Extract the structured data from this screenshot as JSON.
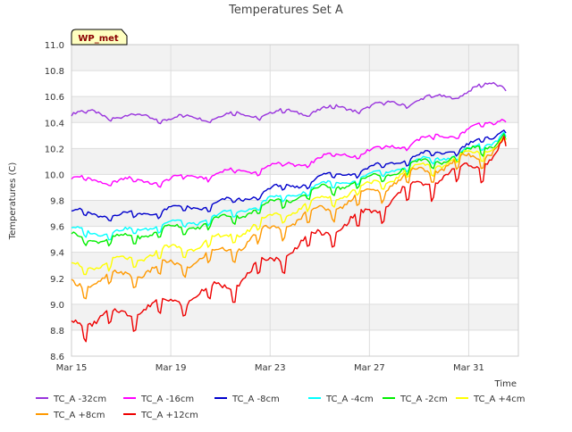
{
  "chart_data": {
    "type": "line",
    "title": "Temperatures Set A",
    "xlabel": "Time",
    "ylabel": "Temperatures (C)",
    "badge": "WP_met",
    "xlim": [
      "2024-03-15",
      "2024-04-02"
    ],
    "ylim": [
      8.6,
      11.0
    ],
    "yticks": [
      8.6,
      8.8,
      9.0,
      9.2,
      9.4,
      9.6,
      9.8,
      10.0,
      10.2,
      10.4,
      10.6,
      10.8,
      11.0
    ],
    "xticks": [
      {
        "date": "2024-03-15",
        "label": "Mar 15"
      },
      {
        "date": "2024-03-19",
        "label": "Mar 19"
      },
      {
        "date": "2024-03-23",
        "label": "Mar 23"
      },
      {
        "date": "2024-03-27",
        "label": "Mar 27"
      },
      {
        "date": "2024-03-31",
        "label": "Mar 31"
      }
    ],
    "grid": true,
    "legend_position": "bottom",
    "series": [
      {
        "name": "TC_A -32cm",
        "color": "#9933dd",
        "x": [
          "2024-03-15",
          "2024-03-16",
          "2024-03-17",
          "2024-03-18",
          "2024-03-19",
          "2024-03-20",
          "2024-03-21",
          "2024-03-22",
          "2024-03-23",
          "2024-03-24",
          "2024-03-25",
          "2024-03-26",
          "2024-03-27",
          "2024-03-28",
          "2024-03-29",
          "2024-03-30",
          "2024-03-31",
          "2024-04-01",
          "2024-04-01T12"
        ],
        "values": [
          10.46,
          10.48,
          10.44,
          10.45,
          10.43,
          10.44,
          10.45,
          10.46,
          10.47,
          10.48,
          10.5,
          10.51,
          10.52,
          10.55,
          10.57,
          10.6,
          10.64,
          10.7,
          10.69
        ]
      },
      {
        "name": "TC_A -16cm",
        "color": "#ff00ff",
        "x": [
          "2024-03-15",
          "2024-03-16",
          "2024-03-17",
          "2024-03-18",
          "2024-03-19",
          "2024-03-20",
          "2024-03-21",
          "2024-03-22",
          "2024-03-23",
          "2024-03-24",
          "2024-03-25",
          "2024-03-26",
          "2024-03-27",
          "2024-03-28",
          "2024-03-29",
          "2024-03-30",
          "2024-03-31",
          "2024-04-01",
          "2024-04-01T12"
        ],
        "values": [
          9.96,
          9.96,
          9.95,
          9.95,
          9.96,
          9.99,
          10.01,
          10.03,
          10.06,
          10.08,
          10.12,
          10.16,
          10.18,
          10.22,
          10.26,
          10.3,
          10.34,
          10.4,
          10.46
        ]
      },
      {
        "name": "TC_A -8cm",
        "color": "#0000cc",
        "x": [
          "2024-03-15",
          "2024-03-16",
          "2024-03-17",
          "2024-03-18",
          "2024-03-19",
          "2024-03-20",
          "2024-03-21",
          "2024-03-22",
          "2024-03-23",
          "2024-03-24",
          "2024-03-25",
          "2024-03-26",
          "2024-03-27",
          "2024-03-28",
          "2024-03-29",
          "2024-03-30",
          "2024-03-31",
          "2024-04-01",
          "2024-04-01T12"
        ],
        "values": [
          9.71,
          9.7,
          9.68,
          9.71,
          9.73,
          9.75,
          9.78,
          9.82,
          9.88,
          9.92,
          9.97,
          10.02,
          10.04,
          10.1,
          10.14,
          10.18,
          10.22,
          10.3,
          10.38
        ]
      },
      {
        "name": "TC_A -4cm",
        "color": "#00ffff",
        "x": [
          "2024-03-15",
          "2024-03-16",
          "2024-03-17",
          "2024-03-18",
          "2024-03-19",
          "2024-03-20",
          "2024-03-21",
          "2024-03-22",
          "2024-03-23",
          "2024-03-24",
          "2024-03-25",
          "2024-03-26",
          "2024-03-27",
          "2024-03-28",
          "2024-03-29",
          "2024-03-30",
          "2024-03-31",
          "2024-04-01",
          "2024-04-01T12"
        ],
        "values": [
          9.57,
          9.56,
          9.55,
          9.6,
          9.62,
          9.64,
          9.68,
          9.74,
          9.8,
          9.86,
          9.91,
          9.95,
          9.98,
          10.05,
          10.1,
          10.14,
          10.18,
          10.26,
          10.35
        ]
      },
      {
        "name": "TC_A -2cm",
        "color": "#00ee00",
        "x": [
          "2024-03-15",
          "2024-03-16",
          "2024-03-17",
          "2024-03-18",
          "2024-03-19",
          "2024-03-20",
          "2024-03-21",
          "2024-03-22",
          "2024-03-23",
          "2024-03-24",
          "2024-03-25",
          "2024-03-26",
          "2024-03-27",
          "2024-03-28",
          "2024-03-29",
          "2024-03-30",
          "2024-03-31",
          "2024-04-01",
          "2024-04-01T12"
        ],
        "values": [
          9.52,
          9.51,
          9.5,
          9.55,
          9.58,
          9.61,
          9.65,
          9.71,
          9.77,
          9.83,
          9.88,
          9.93,
          9.96,
          10.03,
          10.08,
          10.12,
          10.17,
          10.24,
          10.33
        ]
      },
      {
        "name": "TC_A +4cm",
        "color": "#ffff00",
        "x": [
          "2024-03-15",
          "2024-03-16",
          "2024-03-17",
          "2024-03-18",
          "2024-03-19",
          "2024-03-20",
          "2024-03-21",
          "2024-03-22",
          "2024-03-23",
          "2024-03-24",
          "2024-03-25",
          "2024-03-26",
          "2024-03-27",
          "2024-03-28",
          "2024-03-29",
          "2024-03-30",
          "2024-03-31",
          "2024-04-01",
          "2024-04-01T12"
        ],
        "values": [
          9.3,
          9.3,
          9.33,
          9.38,
          9.42,
          9.46,
          9.5,
          9.58,
          9.66,
          9.74,
          9.8,
          9.86,
          9.91,
          9.99,
          10.05,
          10.1,
          10.15,
          10.22,
          10.3
        ]
      },
      {
        "name": "TC_A +8cm",
        "color": "#ff9900",
        "x": [
          "2024-03-15",
          "2024-03-16",
          "2024-03-17",
          "2024-03-18",
          "2024-03-19",
          "2024-03-20",
          "2024-03-21",
          "2024-03-22",
          "2024-03-23",
          "2024-03-24",
          "2024-03-25",
          "2024-03-26",
          "2024-03-27",
          "2024-03-28",
          "2024-03-29",
          "2024-03-30",
          "2024-03-31",
          "2024-04-01",
          "2024-04-01T12"
        ],
        "values": [
          9.15,
          9.18,
          9.22,
          9.26,
          9.3,
          9.34,
          9.4,
          9.48,
          9.57,
          9.65,
          9.72,
          9.79,
          9.85,
          9.95,
          10.02,
          10.07,
          10.12,
          10.2,
          10.28
        ]
      },
      {
        "name": "TC_A +12cm",
        "color": "#ee0000",
        "x": [
          "2024-03-15",
          "2024-03-16",
          "2024-03-17",
          "2024-03-18",
          "2024-03-19",
          "2024-03-20",
          "2024-03-21",
          "2024-03-22",
          "2024-03-23",
          "2024-03-24",
          "2024-03-25",
          "2024-03-26",
          "2024-03-27",
          "2024-03-28",
          "2024-03-29",
          "2024-03-30",
          "2024-03-31",
          "2024-04-01",
          "2024-04-01T12"
        ],
        "values": [
          8.87,
          8.88,
          8.93,
          8.98,
          9.02,
          9.07,
          9.13,
          9.22,
          9.34,
          9.44,
          9.54,
          9.62,
          9.7,
          9.83,
          9.92,
          9.99,
          10.05,
          10.15,
          10.27
        ]
      }
    ]
  }
}
